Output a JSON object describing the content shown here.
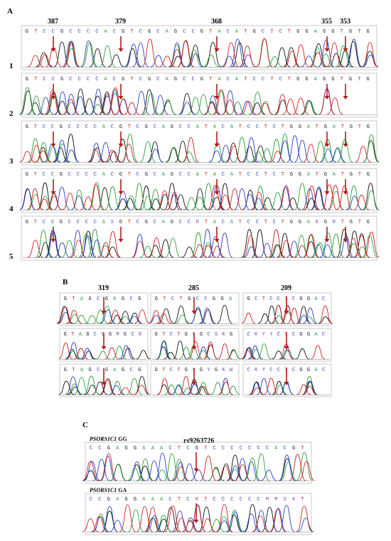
{
  "colors": {
    "A": "#2e9e3a",
    "C": "#2b3fc0",
    "G": "#111111",
    "T": "#cc2222",
    "N": "#8a3fb0",
    "arrow": "#b31b1b",
    "frame": "#bdbdbd"
  },
  "panel_a": {
    "letter": "A",
    "positions": [
      "387",
      "379",
      "368",
      "355",
      "353"
    ],
    "rows": [
      {
        "num": "1",
        "seq": "GTCCGCCCCACGTCGCAGCCGTACATGCTCTGGAGGTGTG"
      },
      {
        "num": "2",
        "seq": "GTCCGCCCCACGTCGCAGCCGTACATCCTCTGGAGGTGTG"
      },
      {
        "num": "3",
        "seq": "GTCCGCCCCACGTCGCAGCCATACATCCTCTGGATGATGTG"
      },
      {
        "num": "4",
        "seq": "GTCCGCCCCACGTCGCAGCCATACATCCTCTGGATGATGTG"
      },
      {
        "num": "5",
        "seq": "GTCSGCCCCASGTCGCAGCCRTACATCCTCTGGAKGRTGTG"
      }
    ]
  },
  "panel_b": {
    "letter": "B",
    "positions": [
      "319",
      "285",
      "209"
    ],
    "rows": [
      [
        "GTAGCGAGCG",
        "GTCTGCCGGA",
        "GCTCCTCGGAC"
      ],
      [
        "GTAGCSGMGCR",
        "GTCTGYGCSKG",
        "CKYYCTCGGAC"
      ],
      [
        "GTAGCGAGCG",
        "GTCTGYGYGKW",
        "CKYCCTCGGAC"
      ]
    ]
  },
  "panel_c": {
    "letter": "C",
    "snp": "rs9263726",
    "samples": [
      {
        "gene": "PSORS1C1",
        "genotype": "GG",
        "seq": "CCGAGGAAACTCGTCCCCCCCACGT"
      },
      {
        "gene": "PSORS1C1",
        "genotype": "GA",
        "seq": "CCGAGGAAACTCRTCCCCCCMMSKT"
      }
    ]
  }
}
